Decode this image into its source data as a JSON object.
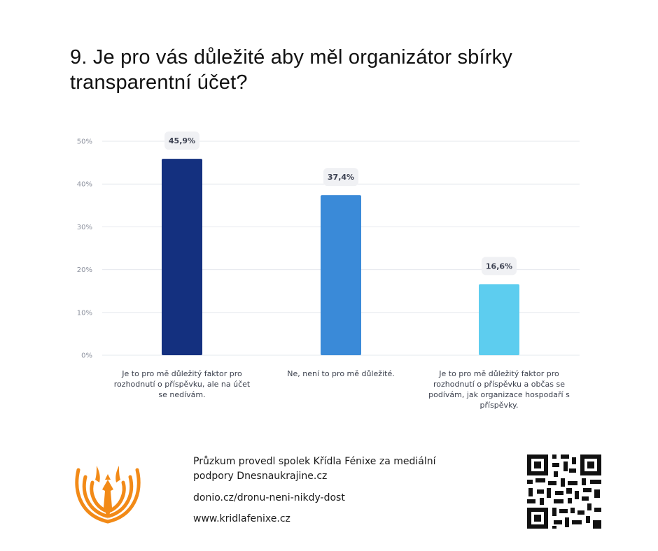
{
  "title": "9. Je pro vás důležité aby měl organizátor sbírky transparentní účet?",
  "chart_data": {
    "type": "bar",
    "categories": [
      "Je to pro mě důležitý faktor pro rozhodnutí o příspěvku, ale na účet se nedívám.",
      "Ne, není to pro mě důležité.",
      "Je to pro mě důležitý faktor pro rozhodnutí o příspěvku a občas se podívám, jak organizace hospodaří s příspěvky."
    ],
    "values": [
      45.9,
      37.4,
      16.6
    ],
    "value_labels": [
      "45,9%",
      "37,4%",
      "16,6%"
    ],
    "colors": [
      "#14307f",
      "#3a8ad8",
      "#5dcdef"
    ],
    "ylim": [
      0,
      50
    ],
    "yticks": [
      0,
      10,
      20,
      30,
      40,
      50
    ],
    "ytick_labels": [
      "0%",
      "10%",
      "20%",
      "30%",
      "40%",
      "50%"
    ],
    "grid": true
  },
  "footer": {
    "line1": "Průzkum provedl spolek Křídla Fénixe za mediální",
    "line2": "podpory Dnesnaukrajine.cz",
    "link1": "donio.cz/dronu-neni-nikdy-dost",
    "link2": "www.kridlafenixe.cz"
  },
  "icons": {
    "logo": "phoenix-logo-icon",
    "qr": "qr-code-icon"
  },
  "brand_color": "#f28a17"
}
